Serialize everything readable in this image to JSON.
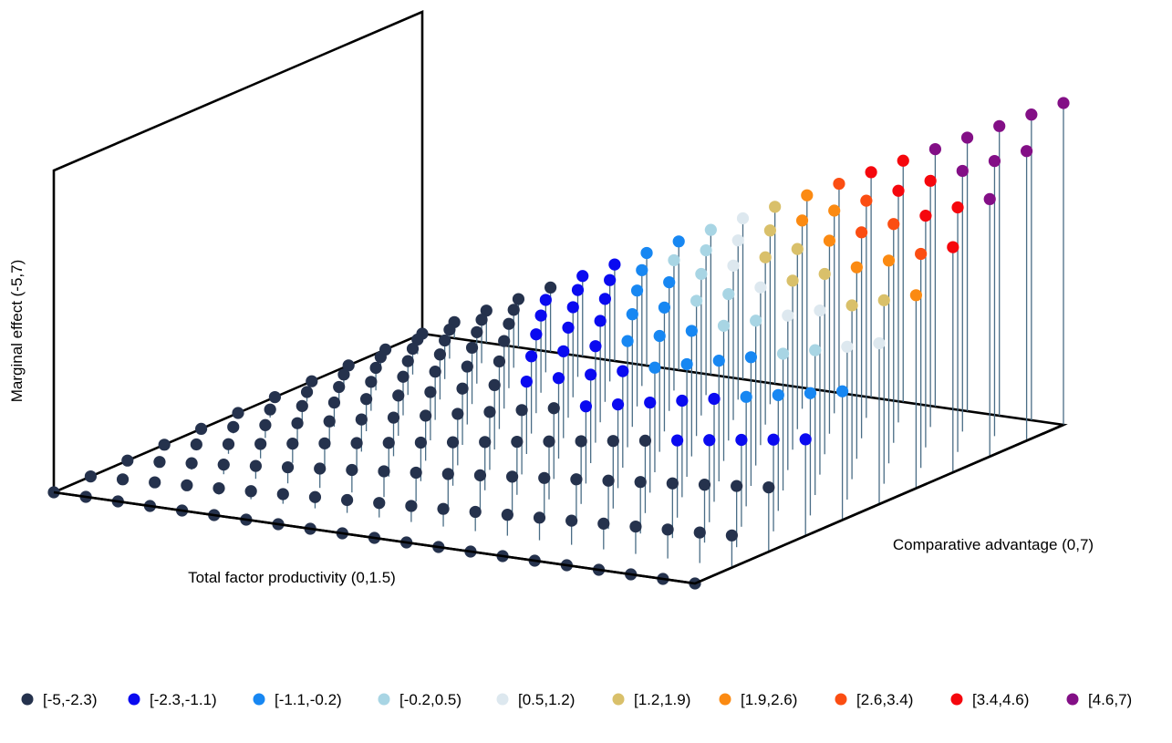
{
  "chart_data": {
    "type": "scatter",
    "subtype": "3d-stem-scatter",
    "xlabel": "Comparative advantage (0,7)",
    "ylabel": "Total factor productivity (0,1.5)",
    "zlabel": "Marginal effect (-5,7)",
    "x_range": [
      0,
      7
    ],
    "y_range": [
      0,
      1.5
    ],
    "z_range": [
      -5,
      7
    ],
    "grid_points_x": 21,
    "grid_points_y": 11,
    "surface": "z = -5 + 12 * (x/7) * (y/1.5)",
    "legend_position": "bottom",
    "legend": [
      {
        "label": "[-5,-2.3)",
        "min": -5,
        "max": -2.3,
        "color": "#25324d"
      },
      {
        "label": "[-2.3,-1.1)",
        "min": -2.3,
        "max": -1.1,
        "color": "#0a0af0"
      },
      {
        "label": "[-1.1,-0.2)",
        "min": -1.1,
        "max": -0.2,
        "color": "#1787f2"
      },
      {
        "label": "[-0.2,0.5)",
        "min": -0.2,
        "max": 0.5,
        "color": "#a8d5e4"
      },
      {
        "label": "[0.5,1.2)",
        "min": 0.5,
        "max": 1.2,
        "color": "#dde8ef"
      },
      {
        "label": "[1.2,1.9)",
        "min": 1.2,
        "max": 1.9,
        "color": "#d9c06a"
      },
      {
        "label": "[1.9,2.6)",
        "min": 1.9,
        "max": 2.6,
        "color": "#fb8a12"
      },
      {
        "label": "[2.6,3.4)",
        "min": 2.6,
        "max": 3.4,
        "color": "#fb4d12"
      },
      {
        "label": "[3.4,4.6)",
        "min": 3.4,
        "max": 4.6,
        "color": "#f5070d"
      },
      {
        "label": "[4.6,7)",
        "min": 4.6,
        "max": 7,
        "color": "#830f86"
      }
    ]
  }
}
